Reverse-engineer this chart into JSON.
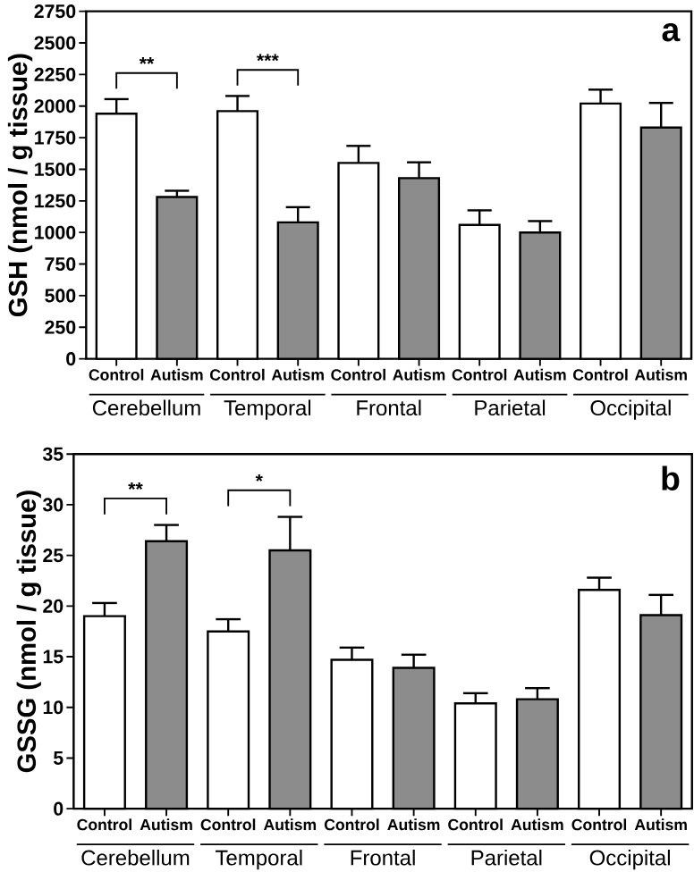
{
  "chart_data": [
    {
      "type": "bar",
      "ylabel": "GSH (nmol / g tissue)",
      "categories": [
        "Control",
        "Autism",
        "Control",
        "Autism",
        "Control",
        "Autism",
        "Control",
        "Autism",
        "Control",
        "Autism"
      ],
      "values": [
        1940,
        1280,
        1960,
        1080,
        1550,
        1430,
        1060,
        1000,
        2020,
        1830
      ],
      "colors": [
        "#ffffff",
        "#8c8c8c",
        "#ffffff",
        "#8c8c8c",
        "#ffffff",
        "#8c8c8c",
        "#ffffff",
        "#8c8c8c",
        "#ffffff",
        "#8c8c8c"
      ],
      "errors": [
        [
          1940,
          2055
        ],
        [
          1280,
          1330
        ],
        [
          1960,
          2080
        ],
        [
          1080,
          1200
        ],
        [
          1550,
          1685
        ],
        [
          1430,
          1555
        ],
        [
          1060,
          1175
        ],
        [
          1000,
          1090
        ],
        [
          2020,
          2130
        ],
        [
          1830,
          2025
        ]
      ],
      "ylim": [
        0,
        2750
      ],
      "yticks": [
        0,
        250,
        500,
        750,
        1000,
        1250,
        1500,
        1750,
        2000,
        2250,
        2500,
        2750
      ],
      "annotations": [
        "Cerebellum",
        "Temporal",
        "Frontal",
        "Parietal",
        "Occipital",
        "a",
        "**",
        "***"
      ]
    },
    {
      "type": "bar",
      "ylabel": "GSSG (nmol / g tissue)",
      "categories": [
        "Control",
        "Autism",
        "Control",
        "Autism",
        "Control",
        "Autism",
        "Control",
        "Autism",
        "Control",
        "Autism"
      ],
      "values": [
        19.0,
        26.4,
        17.5,
        25.5,
        14.7,
        13.9,
        10.4,
        10.8,
        21.6,
        19.1
      ],
      "colors": [
        "#ffffff",
        "#8c8c8c",
        "#ffffff",
        "#8c8c8c",
        "#ffffff",
        "#8c8c8c",
        "#ffffff",
        "#8c8c8c",
        "#ffffff",
        "#8c8c8c"
      ],
      "errors": [
        [
          19.0,
          20.3
        ],
        [
          26.4,
          28.0
        ],
        [
          17.5,
          18.7
        ],
        [
          25.5,
          28.8
        ],
        [
          14.7,
          15.9
        ],
        [
          13.9,
          15.2
        ],
        [
          10.4,
          11.4
        ],
        [
          10.8,
          11.9
        ],
        [
          21.6,
          22.8
        ],
        [
          19.1,
          21.1
        ]
      ],
      "ylim": [
        0,
        35
      ],
      "yticks": [
        0,
        5,
        10,
        15,
        20,
        25,
        30,
        35
      ],
      "annotations": [
        "Cerebellum",
        "Temporal",
        "Frontal",
        "Parietal",
        "Occipital",
        "b",
        "**",
        "*"
      ]
    }
  ]
}
